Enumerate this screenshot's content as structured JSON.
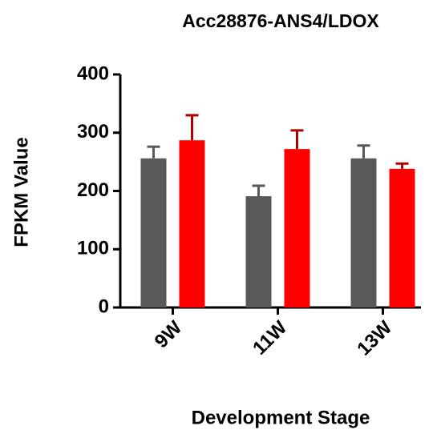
{
  "chart_data": {
    "type": "bar",
    "title": "Acc28876-ANS4/LDOX",
    "x_label": "Development Stage",
    "y_label": "FPKM Value",
    "categories": [
      "9W",
      "11W",
      "13W"
    ],
    "series": [
      {
        "color": "#595959",
        "values": [
          256,
          191,
          256
        ],
        "errors": [
          20,
          18,
          22
        ]
      },
      {
        "color": "#ff0000",
        "values": [
          287,
          272,
          238
        ],
        "errors": [
          43,
          32,
          9
        ]
      }
    ],
    "ylim": [
      0,
      400
    ],
    "yticks": [
      0,
      100,
      200,
      300,
      400
    ]
  }
}
